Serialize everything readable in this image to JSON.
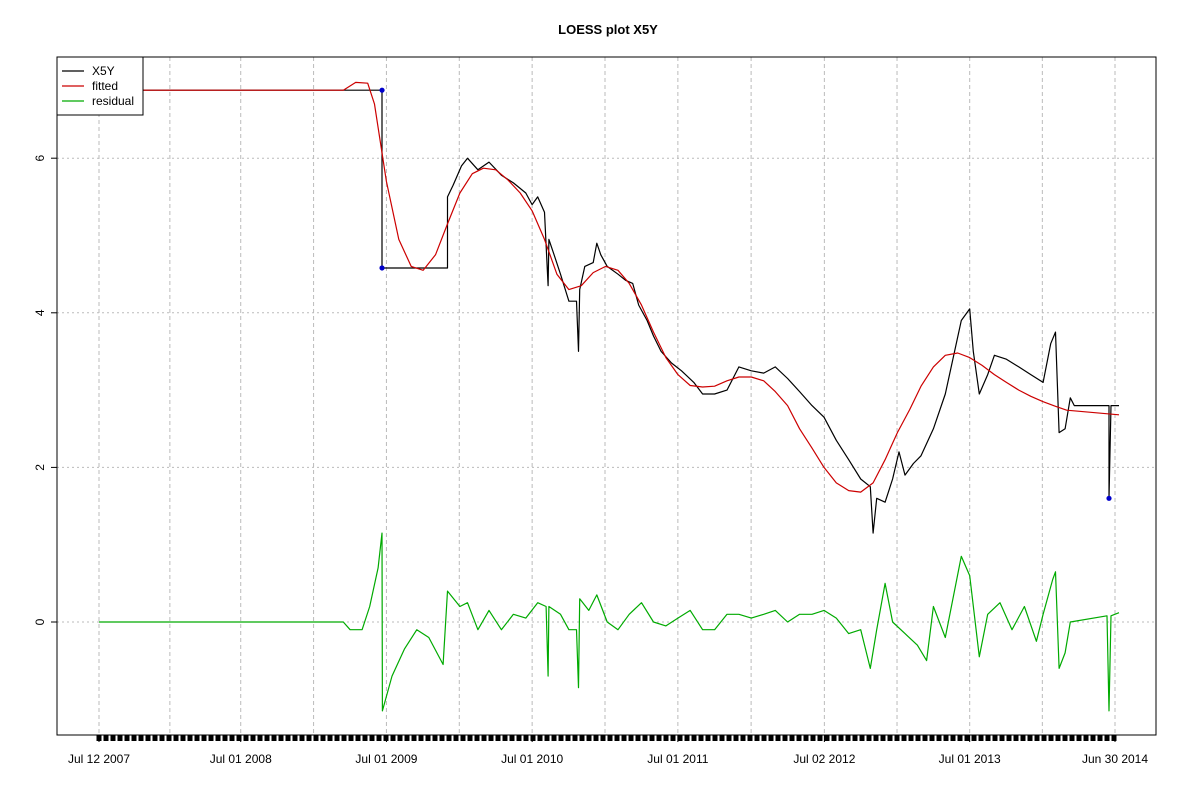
{
  "chart_data": {
    "type": "line",
    "title": "LOESS plot X5Y",
    "xlabel": "",
    "ylabel": "",
    "x_tick_labels": [
      "Jul 12 2007",
      "Jul 01 2008",
      "Jul 01 2009",
      "Jul 01 2010",
      "Jul 01 2011",
      "Jul 02 2012",
      "Jul 01 2013",
      "Jun 30 2014"
    ],
    "y_tick_labels": [
      "0",
      "2",
      "4",
      "6"
    ],
    "ylim": [
      -1.5,
      7.3
    ],
    "grid": true,
    "legend": {
      "position": "top-left",
      "entries": [
        {
          "name": "X5Y",
          "color": "#000000"
        },
        {
          "name": "fitted",
          "color": "#cc0000"
        },
        {
          "name": "residual",
          "color": "#00aa00"
        }
      ]
    },
    "colors": {
      "X5Y": "#000000",
      "fitted": "#cc0000",
      "residual": "#00aa00",
      "markers": "#0000cc",
      "grid": "#bbbbbb"
    },
    "series": [
      {
        "name": "X5Y",
        "points": [
          [
            "2007-07-12",
            6.88
          ],
          [
            "2009-06-20",
            6.88
          ],
          [
            "2009-06-20",
            4.58
          ],
          [
            "2009-12-01",
            4.58
          ],
          [
            "2009-12-01",
            5.5
          ],
          [
            "2009-12-15",
            5.65
          ],
          [
            "2010-01-05",
            5.9
          ],
          [
            "2010-01-20",
            6.0
          ],
          [
            "2010-02-15",
            5.85
          ],
          [
            "2010-03-15",
            5.95
          ],
          [
            "2010-04-15",
            5.78
          ],
          [
            "2010-05-15",
            5.68
          ],
          [
            "2010-06-15",
            5.55
          ],
          [
            "2010-07-01",
            5.4
          ],
          [
            "2010-07-15",
            5.5
          ],
          [
            "2010-08-01",
            5.3
          ],
          [
            "2010-08-10",
            4.35
          ],
          [
            "2010-08-12",
            4.95
          ],
          [
            "2010-08-25",
            4.75
          ],
          [
            "2010-09-10",
            4.5
          ],
          [
            "2010-10-01",
            4.15
          ],
          [
            "2010-10-20",
            4.15
          ],
          [
            "2010-10-25",
            3.5
          ],
          [
            "2010-10-28",
            4.3
          ],
          [
            "2010-11-10",
            4.6
          ],
          [
            "2010-12-01",
            4.65
          ],
          [
            "2010-12-10",
            4.9
          ],
          [
            "2010-12-20",
            4.75
          ],
          [
            "2011-01-05",
            4.6
          ],
          [
            "2011-02-01",
            4.5
          ],
          [
            "2011-02-20",
            4.42
          ],
          [
            "2011-03-10",
            4.38
          ],
          [
            "2011-03-25",
            4.1
          ],
          [
            "2011-04-15",
            3.9
          ],
          [
            "2011-05-01",
            3.7
          ],
          [
            "2011-05-20",
            3.5
          ],
          [
            "2011-06-15",
            3.35
          ],
          [
            "2011-07-10",
            3.25
          ],
          [
            "2011-08-10",
            3.1
          ],
          [
            "2011-09-01",
            2.95
          ],
          [
            "2011-10-01",
            2.95
          ],
          [
            "2011-11-01",
            3.0
          ],
          [
            "2011-12-01",
            3.3
          ],
          [
            "2012-01-01",
            3.25
          ],
          [
            "2012-02-01",
            3.22
          ],
          [
            "2012-03-01",
            3.3
          ],
          [
            "2012-04-01",
            3.15
          ],
          [
            "2012-05-01",
            2.98
          ],
          [
            "2012-06-01",
            2.8
          ],
          [
            "2012-07-01",
            2.65
          ],
          [
            "2012-08-01",
            2.35
          ],
          [
            "2012-09-01",
            2.1
          ],
          [
            "2012-10-01",
            1.85
          ],
          [
            "2012-10-25",
            1.75
          ],
          [
            "2012-11-01",
            1.15
          ],
          [
            "2012-11-10",
            1.6
          ],
          [
            "2012-12-01",
            1.55
          ],
          [
            "2012-12-20",
            1.85
          ],
          [
            "2013-01-05",
            2.2
          ],
          [
            "2013-01-20",
            1.9
          ],
          [
            "2013-02-10",
            2.05
          ],
          [
            "2013-03-01",
            2.15
          ],
          [
            "2013-04-01",
            2.5
          ],
          [
            "2013-05-01",
            2.95
          ],
          [
            "2013-06-10",
            3.9
          ],
          [
            "2013-07-01",
            4.05
          ],
          [
            "2013-07-10",
            3.5
          ],
          [
            "2013-07-25",
            2.95
          ],
          [
            "2013-08-15",
            3.2
          ],
          [
            "2013-09-01",
            3.45
          ],
          [
            "2013-10-01",
            3.4
          ],
          [
            "2013-11-01",
            3.3
          ],
          [
            "2013-12-01",
            3.2
          ],
          [
            "2014-01-01",
            3.1
          ],
          [
            "2014-01-20",
            3.6
          ],
          [
            "2014-02-01",
            3.75
          ],
          [
            "2014-02-10",
            2.45
          ],
          [
            "2014-02-25",
            2.5
          ],
          [
            "2014-03-10",
            2.9
          ],
          [
            "2014-03-20",
            2.8
          ],
          [
            "2014-06-15",
            2.8
          ],
          [
            "2014-06-15",
            1.6
          ],
          [
            "2014-06-20",
            2.8
          ],
          [
            "2014-07-10",
            2.8
          ]
        ]
      },
      {
        "name": "fitted",
        "points": [
          [
            "2007-07-12",
            6.88
          ],
          [
            "2009-03-15",
            6.88
          ],
          [
            "2009-04-15",
            6.98
          ],
          [
            "2009-05-15",
            6.97
          ],
          [
            "2009-06-01",
            6.7
          ],
          [
            "2009-07-01",
            5.7
          ],
          [
            "2009-08-01",
            4.95
          ],
          [
            "2009-09-01",
            4.6
          ],
          [
            "2009-10-01",
            4.55
          ],
          [
            "2009-11-01",
            4.75
          ],
          [
            "2009-12-01",
            5.15
          ],
          [
            "2010-01-01",
            5.55
          ],
          [
            "2010-02-01",
            5.8
          ],
          [
            "2010-03-01",
            5.87
          ],
          [
            "2010-04-01",
            5.85
          ],
          [
            "2010-05-01",
            5.72
          ],
          [
            "2010-06-01",
            5.55
          ],
          [
            "2010-07-01",
            5.32
          ],
          [
            "2010-08-01",
            4.95
          ],
          [
            "2010-09-01",
            4.5
          ],
          [
            "2010-10-01",
            4.3
          ],
          [
            "2010-11-01",
            4.35
          ],
          [
            "2010-12-01",
            4.52
          ],
          [
            "2011-01-01",
            4.6
          ],
          [
            "2011-02-01",
            4.55
          ],
          [
            "2011-03-01",
            4.38
          ],
          [
            "2011-04-01",
            4.1
          ],
          [
            "2011-05-01",
            3.75
          ],
          [
            "2011-06-01",
            3.42
          ],
          [
            "2011-07-01",
            3.2
          ],
          [
            "2011-08-01",
            3.06
          ],
          [
            "2011-09-01",
            3.04
          ],
          [
            "2011-10-01",
            3.05
          ],
          [
            "2011-11-01",
            3.12
          ],
          [
            "2011-12-01",
            3.17
          ],
          [
            "2012-01-01",
            3.17
          ],
          [
            "2012-02-01",
            3.12
          ],
          [
            "2012-03-01",
            2.98
          ],
          [
            "2012-04-01",
            2.8
          ],
          [
            "2012-05-01",
            2.5
          ],
          [
            "2012-06-01",
            2.25
          ],
          [
            "2012-07-01",
            2.0
          ],
          [
            "2012-08-01",
            1.8
          ],
          [
            "2012-09-01",
            1.7
          ],
          [
            "2012-10-01",
            1.68
          ],
          [
            "2012-11-01",
            1.8
          ],
          [
            "2012-12-01",
            2.1
          ],
          [
            "2013-01-01",
            2.45
          ],
          [
            "2013-02-01",
            2.75
          ],
          [
            "2013-03-01",
            3.05
          ],
          [
            "2013-04-01",
            3.3
          ],
          [
            "2013-05-01",
            3.45
          ],
          [
            "2013-06-01",
            3.48
          ],
          [
            "2013-07-01",
            3.42
          ],
          [
            "2013-08-01",
            3.32
          ],
          [
            "2013-09-01",
            3.2
          ],
          [
            "2013-10-01",
            3.1
          ],
          [
            "2013-11-01",
            3.0
          ],
          [
            "2013-12-01",
            2.92
          ],
          [
            "2014-01-01",
            2.85
          ],
          [
            "2014-02-01",
            2.79
          ],
          [
            "2014-03-01",
            2.74
          ],
          [
            "2014-07-10",
            2.68
          ]
        ]
      },
      {
        "name": "residual",
        "points": [
          [
            "2007-07-12",
            0.0
          ],
          [
            "2009-03-15",
            0.0
          ],
          [
            "2009-04-01",
            -0.1
          ],
          [
            "2009-05-01",
            -0.1
          ],
          [
            "2009-05-20",
            0.2
          ],
          [
            "2009-06-10",
            0.7
          ],
          [
            "2009-06-20",
            1.15
          ],
          [
            "2009-06-21",
            -1.15
          ],
          [
            "2009-07-15",
            -0.7
          ],
          [
            "2009-08-15",
            -0.35
          ],
          [
            "2009-09-15",
            -0.1
          ],
          [
            "2009-10-15",
            -0.2
          ],
          [
            "2009-11-20",
            -0.55
          ],
          [
            "2009-12-01",
            0.4
          ],
          [
            "2010-01-01",
            0.2
          ],
          [
            "2010-01-20",
            0.25
          ],
          [
            "2010-02-15",
            -0.1
          ],
          [
            "2010-03-15",
            0.15
          ],
          [
            "2010-04-15",
            -0.1
          ],
          [
            "2010-05-15",
            0.1
          ],
          [
            "2010-06-15",
            0.05
          ],
          [
            "2010-07-15",
            0.25
          ],
          [
            "2010-08-05",
            0.2
          ],
          [
            "2010-08-10",
            -0.7
          ],
          [
            "2010-08-12",
            0.2
          ],
          [
            "2010-09-10",
            0.1
          ],
          [
            "2010-10-01",
            -0.1
          ],
          [
            "2010-10-20",
            -0.1
          ],
          [
            "2010-10-25",
            -0.85
          ],
          [
            "2010-10-28",
            0.3
          ],
          [
            "2010-11-20",
            0.15
          ],
          [
            "2010-12-10",
            0.35
          ],
          [
            "2011-01-05",
            0.0
          ],
          [
            "2011-02-01",
            -0.1
          ],
          [
            "2011-03-01",
            0.1
          ],
          [
            "2011-04-01",
            0.25
          ],
          [
            "2011-05-01",
            0.0
          ],
          [
            "2011-06-01",
            -0.05
          ],
          [
            "2011-07-01",
            0.05
          ],
          [
            "2011-08-01",
            0.15
          ],
          [
            "2011-09-01",
            -0.1
          ],
          [
            "2011-10-01",
            -0.1
          ],
          [
            "2011-11-01",
            0.1
          ],
          [
            "2011-12-01",
            0.1
          ],
          [
            "2012-01-01",
            0.05
          ],
          [
            "2012-02-01",
            0.1
          ],
          [
            "2012-03-01",
            0.15
          ],
          [
            "2012-04-01",
            0.0
          ],
          [
            "2012-05-01",
            0.1
          ],
          [
            "2012-06-01",
            0.1
          ],
          [
            "2012-07-01",
            0.15
          ],
          [
            "2012-08-01",
            0.05
          ],
          [
            "2012-09-01",
            -0.15
          ],
          [
            "2012-10-01",
            -0.1
          ],
          [
            "2012-10-25",
            -0.6
          ],
          [
            "2012-11-10",
            -0.1
          ],
          [
            "2012-12-01",
            0.5
          ],
          [
            "2012-12-20",
            0.0
          ],
          [
            "2013-01-20",
            -0.15
          ],
          [
            "2013-02-20",
            -0.3
          ],
          [
            "2013-03-15",
            -0.5
          ],
          [
            "2013-04-01",
            0.2
          ],
          [
            "2013-05-01",
            -0.2
          ],
          [
            "2013-06-10",
            0.85
          ],
          [
            "2013-07-01",
            0.6
          ],
          [
            "2013-07-25",
            -0.45
          ],
          [
            "2013-08-15",
            0.1
          ],
          [
            "2013-09-15",
            0.25
          ],
          [
            "2013-10-15",
            -0.1
          ],
          [
            "2013-11-15",
            0.2
          ],
          [
            "2013-12-15",
            -0.25
          ],
          [
            "2014-01-01",
            0.1
          ],
          [
            "2014-01-25",
            0.55
          ],
          [
            "2014-02-01",
            0.65
          ],
          [
            "2014-02-10",
            -0.6
          ],
          [
            "2014-02-25",
            -0.4
          ],
          [
            "2014-03-10",
            0.0
          ],
          [
            "2014-06-10",
            0.08
          ],
          [
            "2014-06-15",
            -1.15
          ],
          [
            "2014-06-20",
            0.08
          ],
          [
            "2014-07-10",
            0.12
          ]
        ]
      }
    ],
    "markers": [
      [
        "2009-06-20",
        6.88
      ],
      [
        "2009-06-20",
        4.58
      ],
      [
        "2014-06-15",
        1.6
      ]
    ]
  }
}
